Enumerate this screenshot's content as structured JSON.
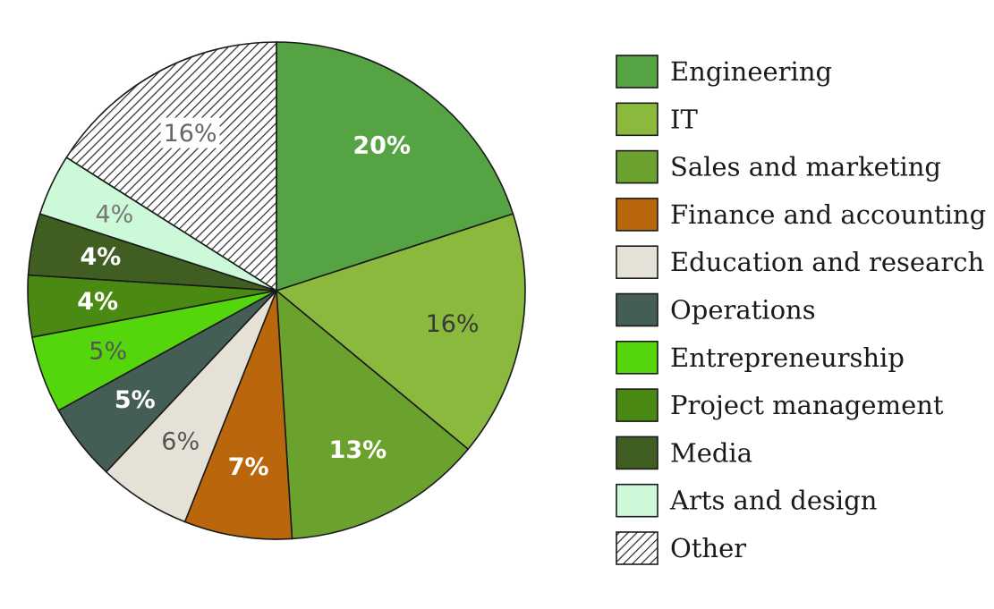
{
  "chart_data": {
    "type": "pie",
    "title": "",
    "slices": [
      {
        "label": "Engineering",
        "value": 20,
        "value_label": "20%",
        "color": "#55a343",
        "label_color": "#ffffff",
        "label_bold": true
      },
      {
        "label": "IT",
        "value": 16,
        "value_label": "16%",
        "color": "#8ab93d",
        "label_color": "#3a3a3a",
        "label_bold": false
      },
      {
        "label": "Sales and marketing",
        "value": 13,
        "value_label": "13%",
        "color": "#6ba12d",
        "label_color": "#ffffff",
        "label_bold": true
      },
      {
        "label": "Finance and accounting",
        "value": 7,
        "value_label": "7%",
        "color": "#b9660c",
        "label_color": "#ffffff",
        "label_bold": true
      },
      {
        "label": "Education and research",
        "value": 6,
        "value_label": "6%",
        "color": "#e6e1d6",
        "label_color": "#555555",
        "label_bold": false
      },
      {
        "label": "Operations",
        "value": 5,
        "value_label": "5%",
        "color": "#445e56",
        "label_color": "#ffffff",
        "label_bold": true
      },
      {
        "label": "Entrepreneurship",
        "value": 5,
        "value_label": "5%",
        "color": "#55d60c",
        "label_color": "#555555",
        "label_bold": false
      },
      {
        "label": "Project management",
        "value": 4,
        "value_label": "4%",
        "color": "#4a8a13",
        "label_color": "#ffffff",
        "label_bold": true
      },
      {
        "label": "Media",
        "value": 4,
        "value_label": "4%",
        "color": "#415e22",
        "label_color": "#ffffff",
        "label_bold": true
      },
      {
        "label": "Arts and design",
        "value": 4,
        "value_label": "4%",
        "color": "#ccf9d8",
        "label_color": "#777777",
        "label_bold": false
      },
      {
        "label": "Other",
        "value": 16,
        "value_label": "16%",
        "color": "pattern:hatch",
        "label_color": "#666666",
        "label_bold": false
      }
    ],
    "legend_position": "right",
    "start_angle": "12 o'clock",
    "direction": "clockwise"
  }
}
